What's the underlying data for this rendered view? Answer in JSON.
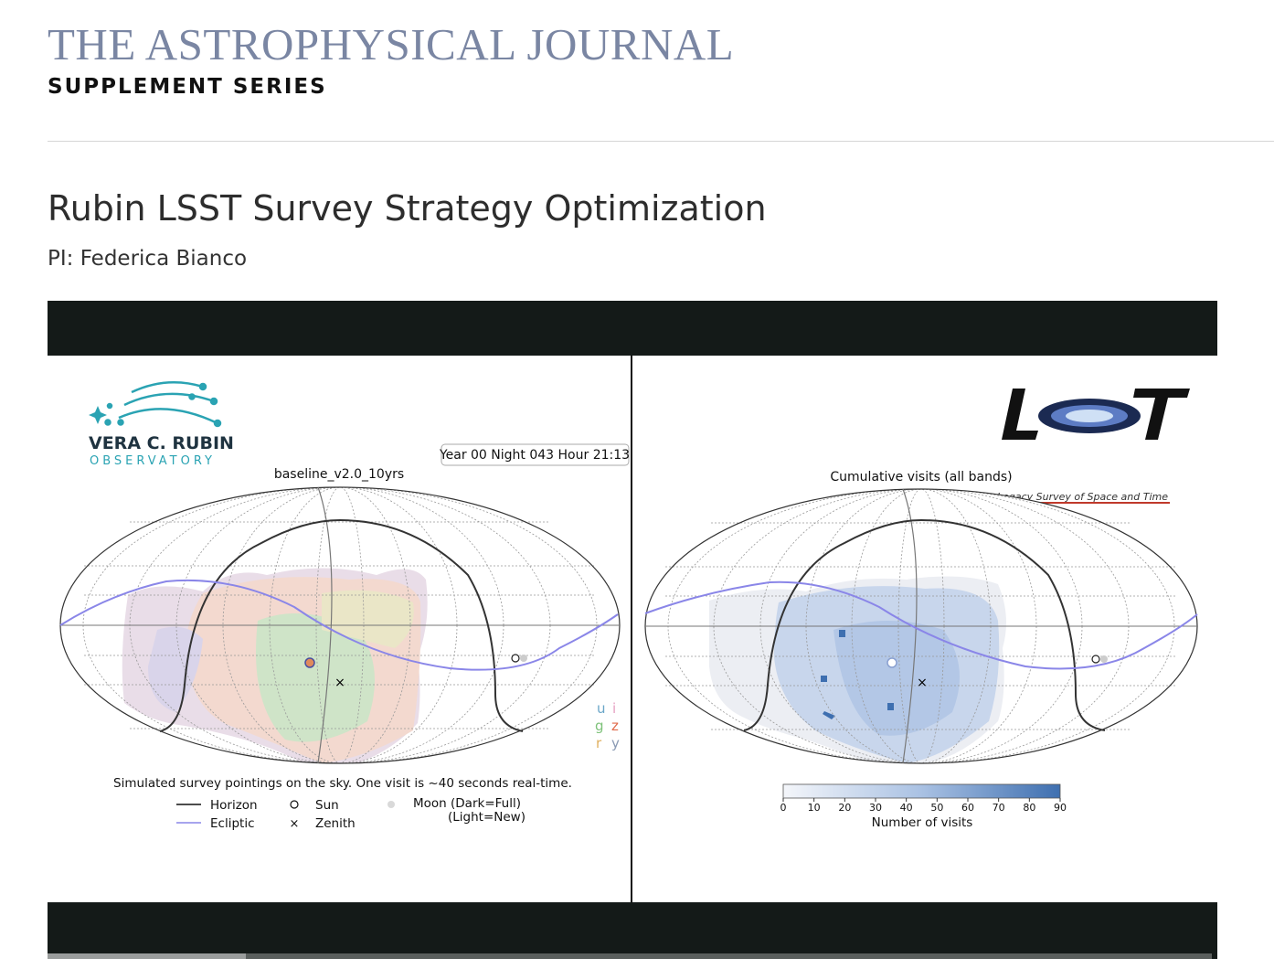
{
  "journal": {
    "title": "THE ASTROPHYSICAL JOURNAL",
    "subtitle": "SUPPLEMENT SERIES"
  },
  "page": {
    "title": "Rubin LSST Survey Strategy Optimization",
    "pi": "PI: Federica Bianco"
  },
  "video": {
    "progress_fraction": 0.17,
    "left_panel": {
      "logo_line1": "VERA C. RUBIN",
      "logo_line2": "OBSERVATORY",
      "timestamp": "Year 00 Night 043 Hour 21:13",
      "run_name": "baseline_v2.0_10yrs",
      "filters": [
        "u",
        "i",
        "g",
        "z",
        "r",
        "y"
      ],
      "caption": "Simulated survey pointings on the sky. One visit is ~40 seconds real-time.",
      "legend": {
        "horizon": "Horizon",
        "ecliptic": "Ecliptic",
        "sun": "Sun",
        "zenith": "Zenith",
        "moon": "Moon (Dark=Full)",
        "moon2": "(Light=New)"
      }
    },
    "right_panel": {
      "logo_text": "LSST",
      "logo_sub": "Legacy Survey of Space and Time",
      "title": "Cumulative visits (all bands)",
      "colorbar_label": "Number of visits",
      "colorbar_ticks": [
        "0",
        "10",
        "20",
        "30",
        "40",
        "50",
        "60",
        "70",
        "80",
        "90"
      ]
    },
    "colors": {
      "ecliptic": "#8a86e8",
      "background": "#141a18",
      "visit_max": "#3e6fb0"
    }
  }
}
